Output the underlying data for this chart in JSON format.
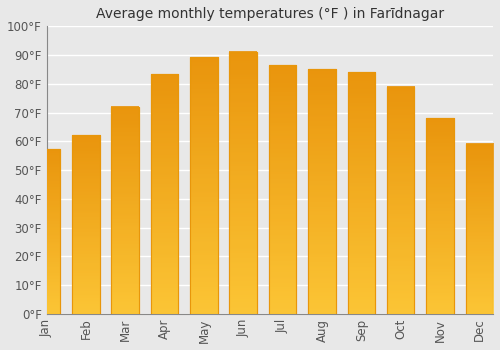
{
  "title": "Average monthly temperatures (°F ) in Farīdnagar",
  "months": [
    "Jan",
    "Feb",
    "Mar",
    "Apr",
    "May",
    "Jun",
    "Jul",
    "Aug",
    "Sep",
    "Oct",
    "Nov",
    "Dec"
  ],
  "values": [
    57.2,
    62.2,
    72.0,
    83.3,
    89.2,
    91.2,
    86.5,
    85.1,
    84.0,
    79.0,
    68.0,
    59.2
  ],
  "bar_color_top": "#F5A623",
  "bar_color_bottom": "#F5C842",
  "bar_edge_color": "#E8960A",
  "background_color": "#E8E8E8",
  "grid_color": "#FFFFFF",
  "text_color": "#555555",
  "title_color": "#333333",
  "ylim": [
    0,
    100
  ],
  "yticks": [
    0,
    10,
    20,
    30,
    40,
    50,
    60,
    70,
    80,
    90,
    100
  ],
  "title_fontsize": 10,
  "tick_fontsize": 8.5
}
